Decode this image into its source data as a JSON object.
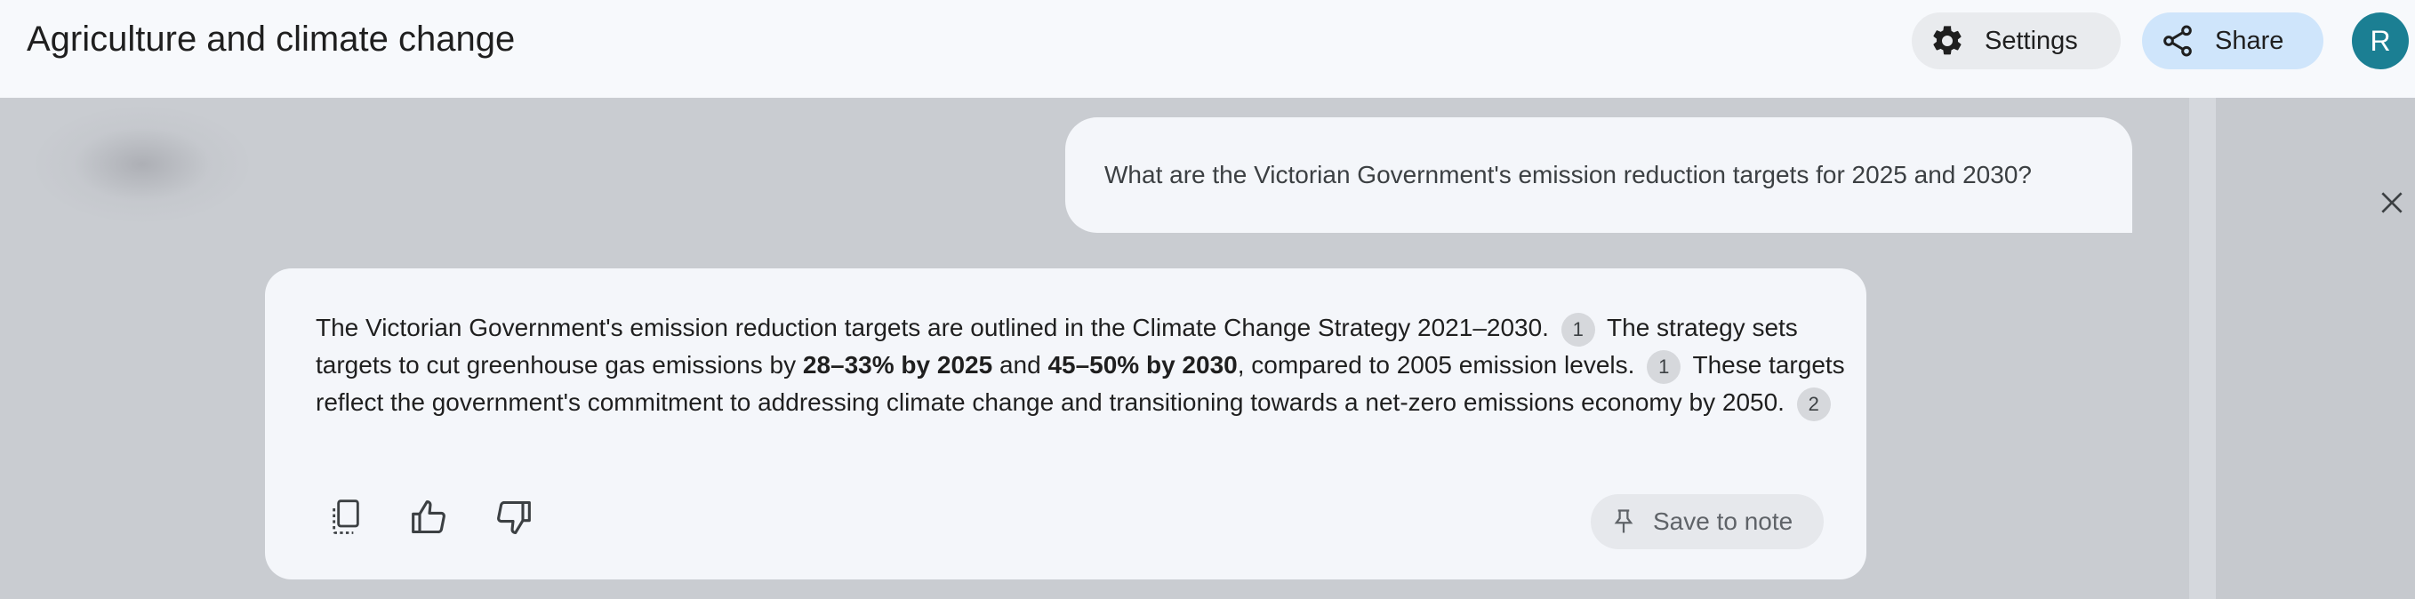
{
  "header": {
    "title": "Agriculture and climate change",
    "settings_label": "Settings",
    "share_label": "Share",
    "avatar_letter": "R",
    "avatar_color": "#1b7f93"
  },
  "chat": {
    "user_message": "What are the Victorian Government's emission reduction targets for 2025 and 2030?",
    "answer": {
      "s1": "The Victorian Government's emission reduction targets are outlined in the Climate Change Strategy 2021–2030.",
      "c1": "1",
      "s2a": "The strategy sets targets to cut greenhouse gas emissions by",
      "b1": "28–33% by 2025",
      "s2b": "and",
      "b2": "45–50% by 2030",
      "s2c": ", compared to 2005 emission levels.",
      "c2": "1",
      "s3": "These targets reflect the government's commitment to addressing climate change and transitioning towards a net-zero emissions economy by 2050.",
      "c3": "2"
    },
    "save_to_note_label": "Save to note"
  },
  "icons": {
    "settings": "gear-icon",
    "share": "share-icon",
    "close": "close-icon",
    "copy": "copy-icon",
    "thumbs_up": "thumbs-up-icon",
    "thumbs_down": "thumbs-down-icon",
    "pin": "pin-icon"
  },
  "colors": {
    "share_button_bg": "#cfe5fb",
    "topbar_bg": "#f7f9fc",
    "overlay_bg": "#c9ccd1"
  }
}
